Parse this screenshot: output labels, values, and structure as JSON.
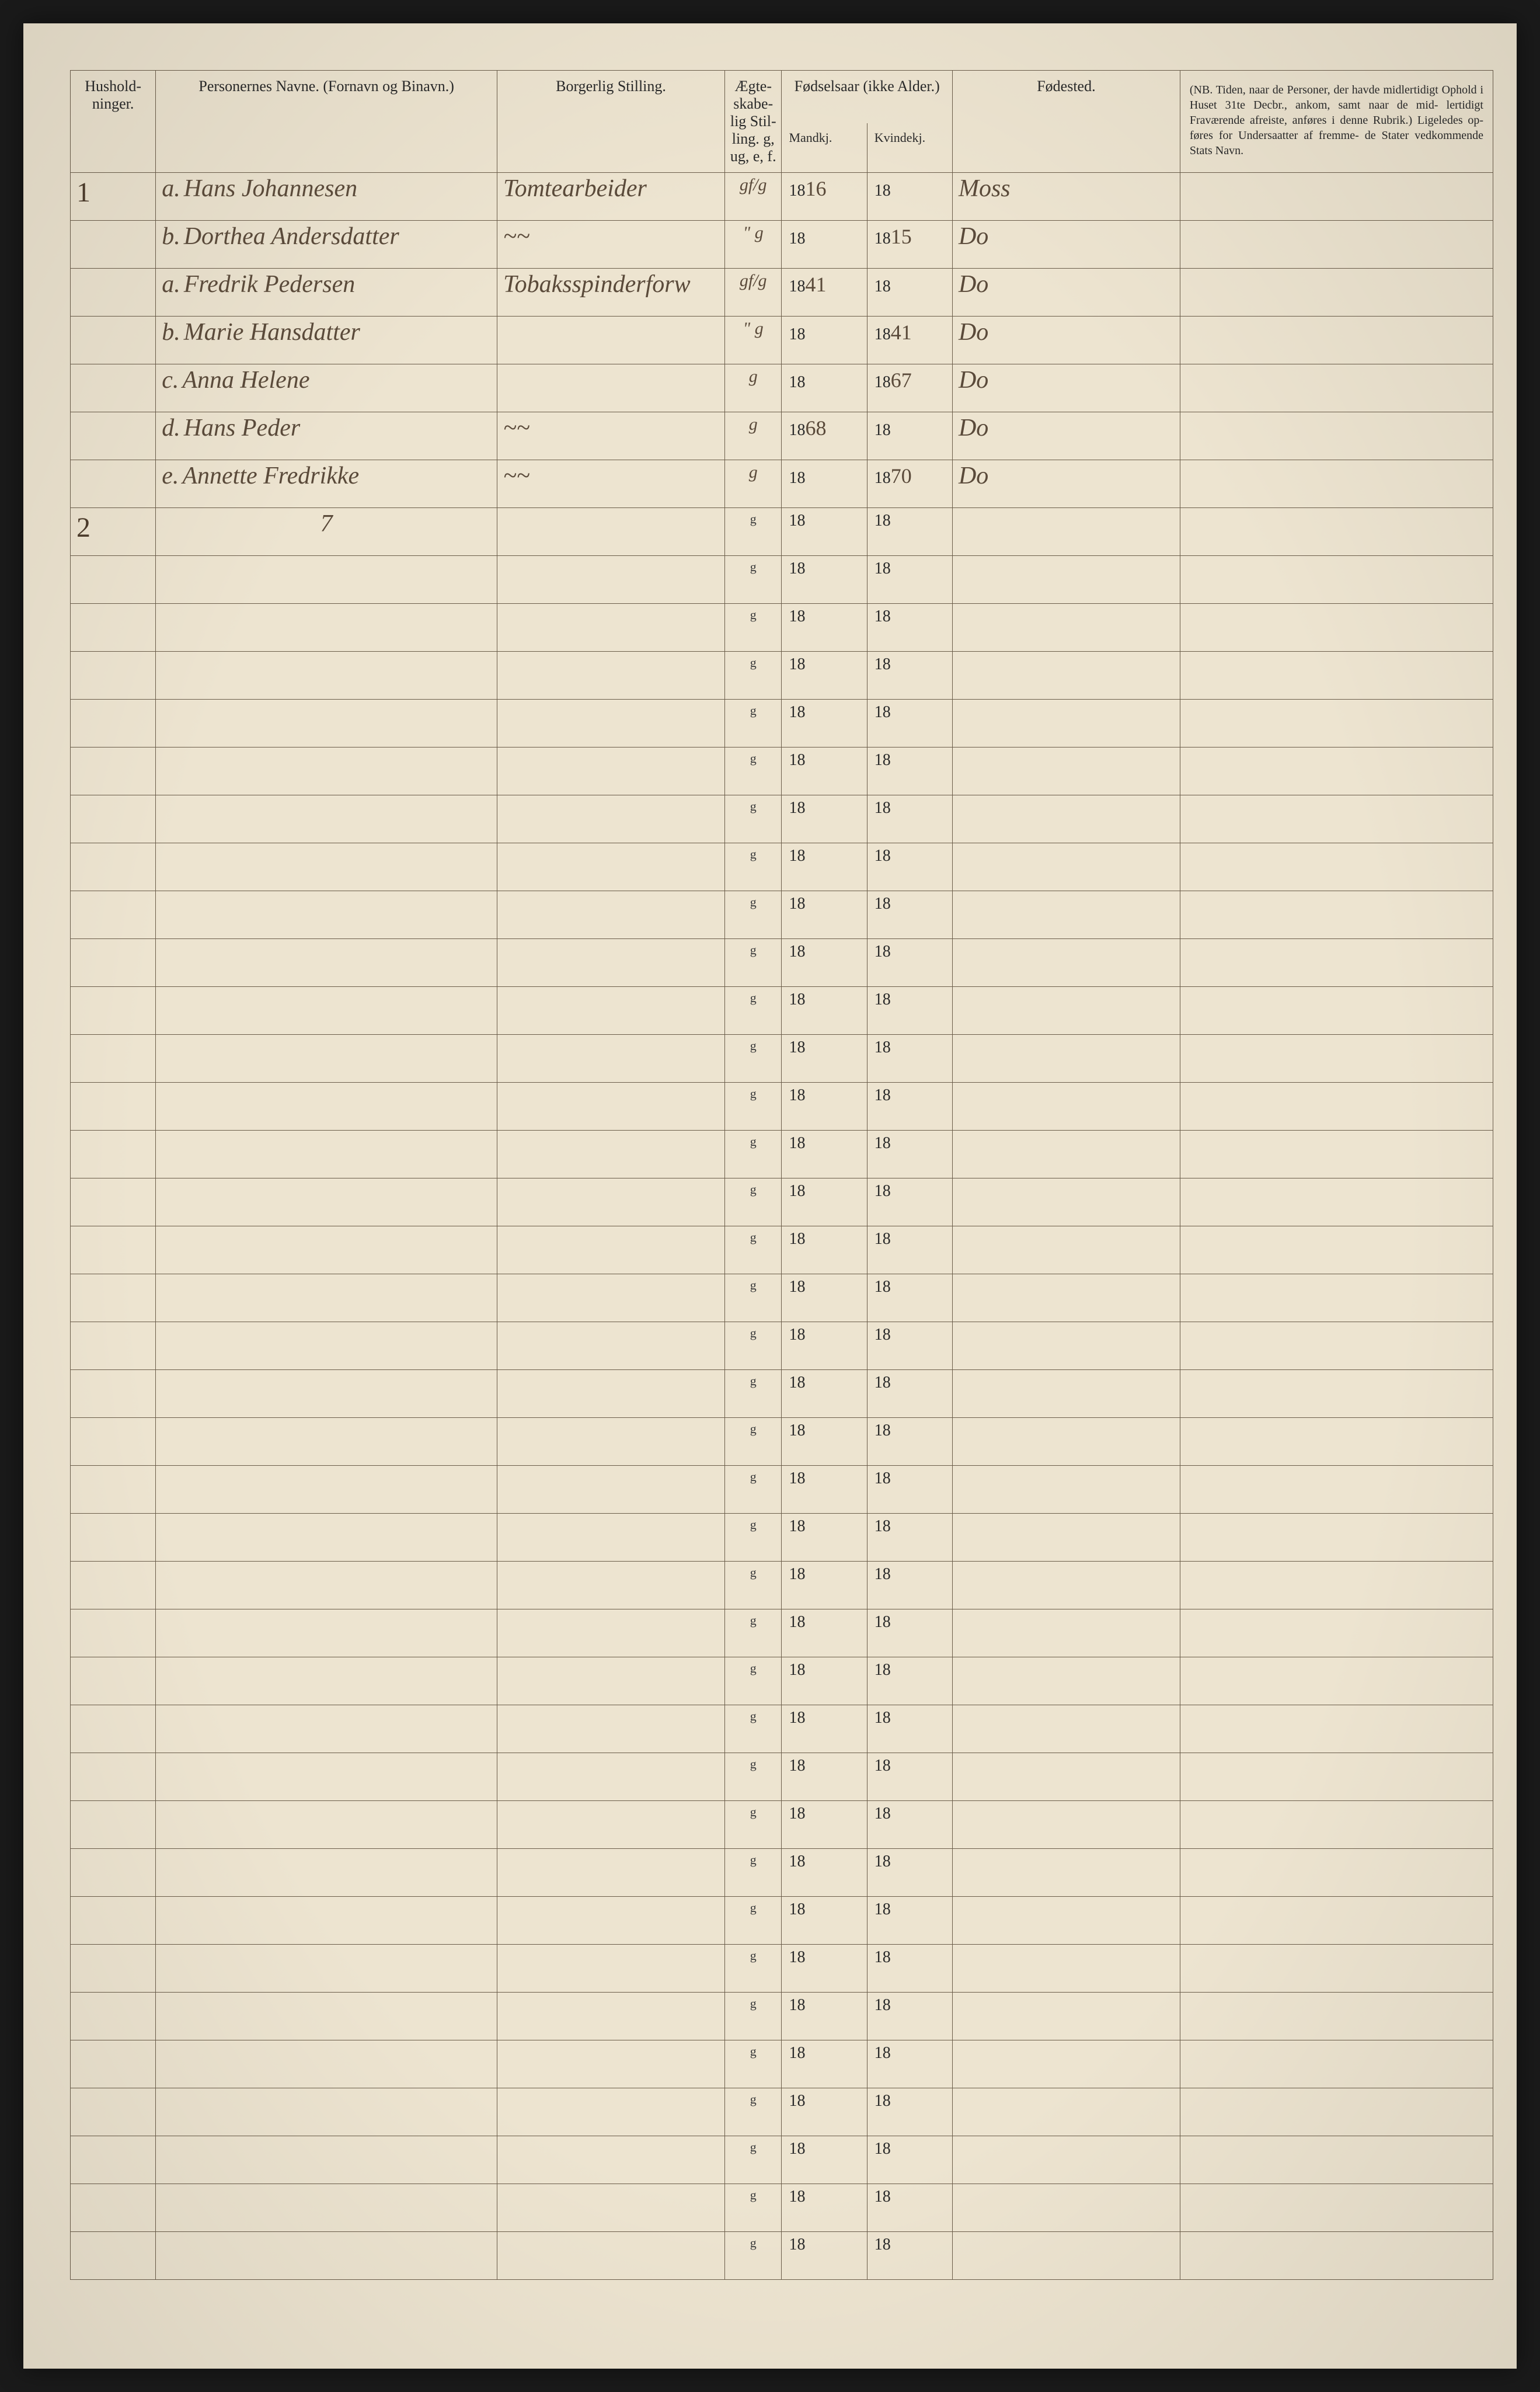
{
  "headers": {
    "hushold": "Hushold-\nninger.",
    "navne": "Personernes Navne.\n(Fornavn og Binavn.)",
    "stilling": "Borgerlig Stilling.",
    "egte": "Ægte-\nskabe-\nlig\nStil-\nling.\ng, ug,\ne, f.",
    "fodsel_group": "Fødselsaar\n(ikke Alder.)",
    "mandkj": "Mandkj.",
    "kvindekj": "Kvindekj.",
    "fodested": "Fødested.",
    "nb": "(NB. Tiden, naar de Personer, der havde midlertidigt Ophold i Huset 31te Decbr., ankom, samt naar de mid-\nlertidigt Fraværende afreiste, anføres i denne Rubrik.) Ligeledes op-\nføres for Undersaatter af fremme-\nde Stater vedkommende Stats Navn."
  },
  "printed_defaults": {
    "egte_char": "g",
    "year_prefix": "18"
  },
  "household_marks": {
    "0": "1",
    "7": "2"
  },
  "household_sum": "7",
  "rows": [
    {
      "prefix": "a.",
      "name": "Hans Johannesen",
      "stilling": "Tomtearbeider",
      "egte": "gf/g",
      "mandkj_suffix": "16",
      "kvindekj_suffix": "",
      "fodested": "Moss"
    },
    {
      "prefix": "b.",
      "name": "Dorthea Andersdatter",
      "stilling": "~~",
      "egte": "\" g",
      "mandkj_suffix": "",
      "kvindekj_suffix": "15",
      "fodested": "Do"
    },
    {
      "prefix": "a.",
      "name": "Fredrik Pedersen",
      "stilling": "Tobaksspinderforw",
      "egte": "gf/g",
      "mandkj_suffix": "41",
      "kvindekj_suffix": "",
      "fodested": "Do"
    },
    {
      "prefix": "b.",
      "name": "Marie Hansdatter",
      "stilling": "",
      "egte": "\" g",
      "mandkj_suffix": "",
      "kvindekj_suffix": "41",
      "fodested": "Do"
    },
    {
      "prefix": "c.",
      "name": "Anna Helene",
      "stilling": "",
      "egte": "g",
      "mandkj_suffix": "",
      "kvindekj_suffix": "67",
      "fodested": "Do"
    },
    {
      "prefix": "d.",
      "name": "Hans Peder",
      "stilling": "~~",
      "egte": "g",
      "mandkj_suffix": "68",
      "kvindekj_suffix": "",
      "fodested": "Do"
    },
    {
      "prefix": "e.",
      "name": "Annette Fredrikke",
      "stilling": "~~",
      "egte": "g",
      "mandkj_suffix": "",
      "kvindekj_suffix": "70",
      "fodested": "Do"
    }
  ],
  "empty_row_count": 36,
  "colors": {
    "paper_bg": "#ede4d0",
    "border": "#6b5d4a",
    "ink_printed": "#2a2a2a",
    "ink_handwritten": "#5a4a3a",
    "page_bg": "#1a1a1a"
  }
}
